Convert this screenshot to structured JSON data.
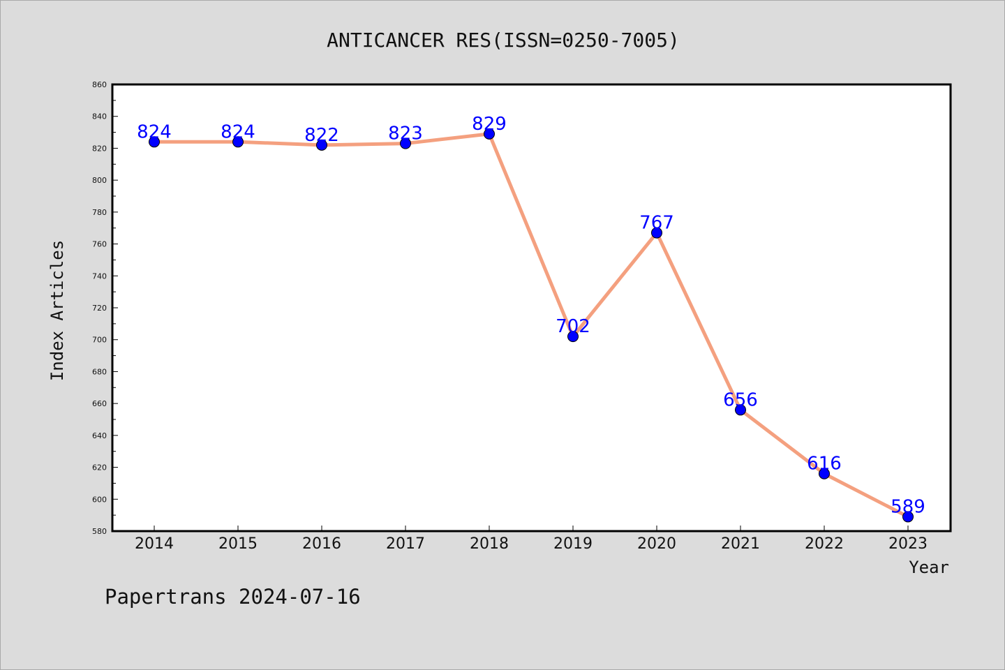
{
  "footer": {
    "watermark": "Papertrans 2024-07-16"
  },
  "chart_data": {
    "type": "line",
    "title": "ANTICANCER RES(ISSN=0250-7005)",
    "xlabel": "Year",
    "ylabel": "Index Articles",
    "categories": [
      "2014",
      "2015",
      "2016",
      "2017",
      "2018",
      "2019",
      "2020",
      "2021",
      "2022",
      "2023"
    ],
    "series": [
      {
        "values": [
          824,
          824,
          822,
          823,
          829,
          702,
          767,
          656,
          616,
          589
        ],
        "line_color": "#f4a07f",
        "marker_color": "#0000ff"
      }
    ],
    "data_labels": [
      "824",
      "824",
      "822",
      "823",
      "829",
      "702",
      "767",
      "656",
      "616",
      "589"
    ],
    "ylim": [
      580,
      860
    ],
    "yticks": [
      "580",
      "600",
      "620",
      "640",
      "660",
      "680",
      "700",
      "720",
      "740",
      "760",
      "780",
      "800",
      "820",
      "840",
      "860"
    ],
    "y_minor_step": 10,
    "grid": false,
    "legend": "none",
    "colors": {
      "background": "#dcdcdc",
      "plot_background": "#ffffff",
      "label": "#0000ff"
    }
  }
}
